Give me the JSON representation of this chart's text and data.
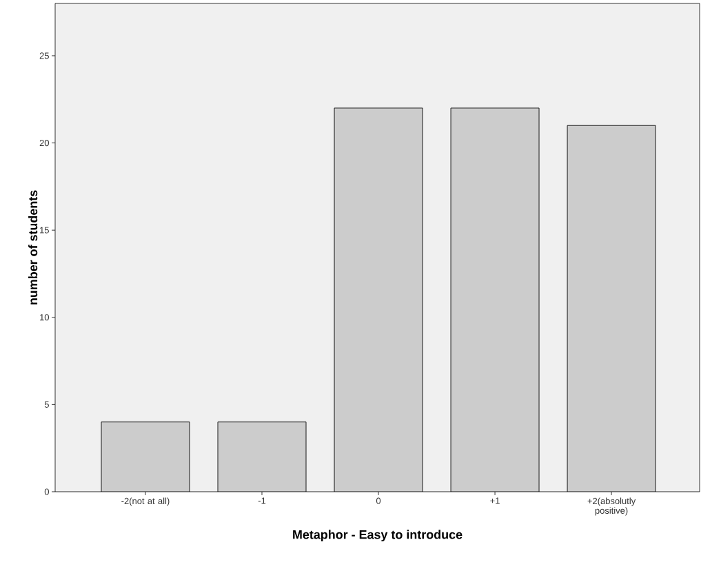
{
  "chart_data": {
    "type": "bar",
    "categories": [
      "-2(not at all)",
      "-1",
      "0",
      "+1",
      "+2(absolutly positive)"
    ],
    "values": [
      4,
      4,
      22,
      22,
      21
    ],
    "color": "#cccccc",
    "xlabel": "Metaphor - Easy to introduce",
    "ylabel": "number of students",
    "ylim": [
      0,
      28
    ],
    "yticks": [
      0,
      5,
      10,
      15,
      20,
      25
    ]
  }
}
